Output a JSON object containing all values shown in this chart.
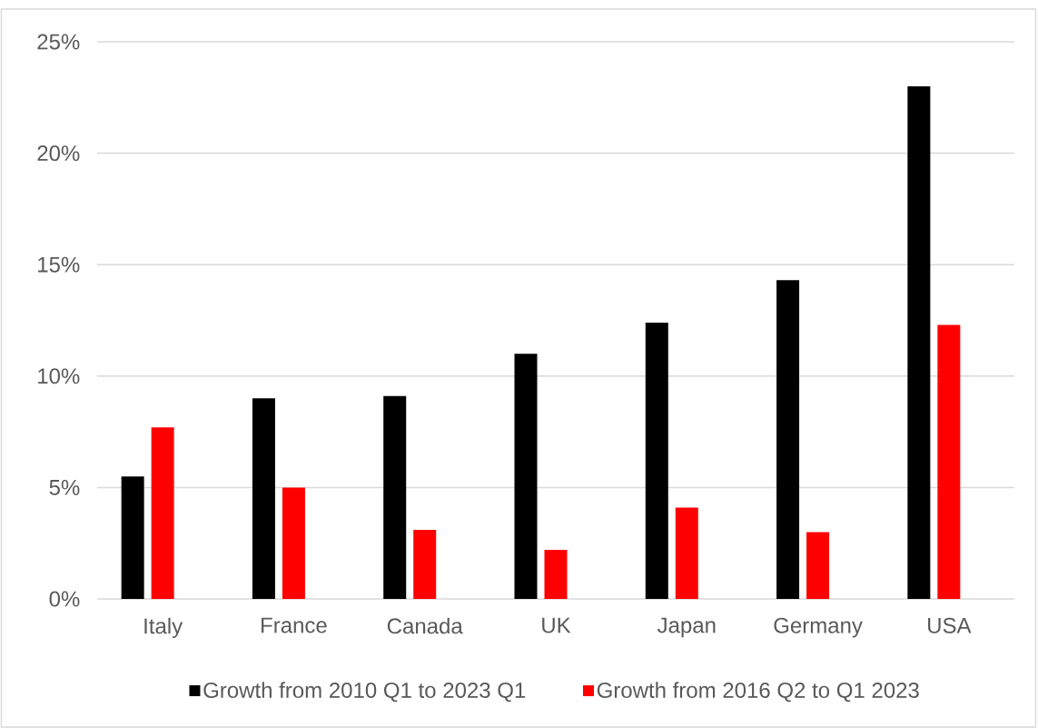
{
  "chart_data": {
    "type": "bar",
    "categories": [
      "Italy",
      "France",
      "Canada",
      "UK",
      "Japan",
      "Germany",
      "USA"
    ],
    "series": [
      {
        "name": "Growth from 2010 Q1 to 2023 Q1",
        "color": "#000000",
        "values": [
          5.5,
          9.0,
          9.1,
          11.0,
          12.4,
          14.3,
          23.0
        ]
      },
      {
        "name": "Growth from 2016 Q2 to Q1 2023",
        "color": "#ff0000",
        "values": [
          7.7,
          5.0,
          3.1,
          2.2,
          4.1,
          3.0,
          12.3
        ]
      }
    ],
    "ylim": [
      0,
      25
    ],
    "yticks": [
      {
        "value": 0,
        "label": "0%"
      },
      {
        "value": 5,
        "label": "5%"
      },
      {
        "value": 10,
        "label": "10%"
      },
      {
        "value": 15,
        "label": "15%"
      },
      {
        "value": 20,
        "label": "20%"
      },
      {
        "value": 25,
        "label": "25%"
      }
    ],
    "grid": "y",
    "legend": "bottom"
  }
}
